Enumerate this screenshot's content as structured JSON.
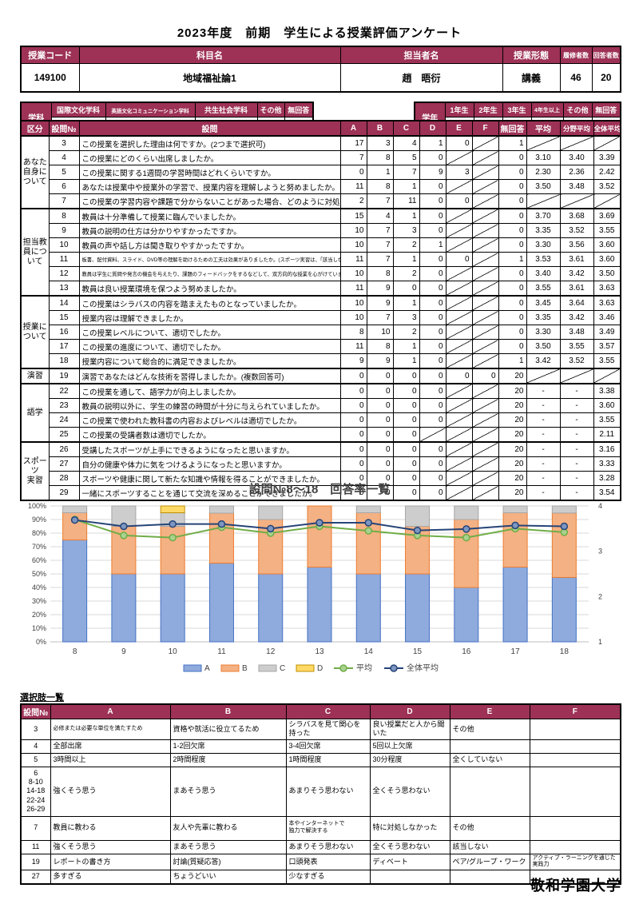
{
  "page_title": "2023年度　前期　学生による授業評価アンケート",
  "course_info": {
    "headers": [
      "授業コード",
      "科目名",
      "担当者名",
      "授業形態",
      "履修者数",
      "回答者数"
    ],
    "values": [
      "149100",
      "地域福祉論1",
      "趙　晤衍",
      "講義",
      "46",
      "20"
    ]
  },
  "department": {
    "label": "学科",
    "headers": [
      "国際文化学科",
      "英語文化コミュニケーション学科",
      "共生社会学科",
      "その他",
      "無回答"
    ],
    "values": [
      "2",
      "0",
      "18",
      "0",
      "0"
    ]
  },
  "grade": {
    "label": "学年",
    "headers": [
      "1年生",
      "2年生",
      "3年生",
      "4年生以上",
      "その他",
      "無回答"
    ],
    "values": [
      "0",
      "14",
      "5",
      "1",
      "0",
      "0"
    ]
  },
  "survey_table": {
    "headers": [
      "区分",
      "設問№",
      "設問",
      "A",
      "B",
      "C",
      "D",
      "E",
      "F",
      "無回答",
      "平均",
      "分野平均",
      "全体平均"
    ],
    "groups": [
      {
        "label": "あなた\n自身に\nついて",
        "rows": [
          {
            "no": "3",
            "q": "この授業を選択した理由は何ですか。(2つまで選択可)",
            "small": false,
            "cells": [
              "17",
              "3",
              "4",
              "1",
              "0",
              "/",
              "1",
              "/",
              "/",
              "/"
            ]
          },
          {
            "no": "4",
            "q": "この授業にどのくらい出席しましたか。",
            "small": false,
            "cells": [
              "7",
              "8",
              "5",
              "0",
              "/",
              "/",
              "0",
              "3.10",
              "3.40",
              "3.39"
            ]
          },
          {
            "no": "5",
            "q": "この授業に関する1週間の学習時間はどれくらいですか。",
            "small": false,
            "cells": [
              "0",
              "1",
              "7",
              "9",
              "3",
              "/",
              "0",
              "2.30",
              "2.36",
              "2.42"
            ]
          },
          {
            "no": "6",
            "q": "あなたは授業中や授業外の学習で、授業内容を理解しようと努めましたか。",
            "small": false,
            "cells": [
              "11",
              "8",
              "1",
              "0",
              "/",
              "/",
              "0",
              "3.50",
              "3.48",
              "3.52"
            ]
          },
          {
            "no": "7",
            "q": "この授業の学習内容や課題で分からないことがあった場合、どのように対処しましたか。",
            "small": false,
            "cells": [
              "2",
              "7",
              "11",
              "0",
              "0",
              "/",
              "0",
              "/",
              "/",
              "/"
            ]
          }
        ]
      },
      {
        "label": "担当教\n員につ\nいて",
        "rows": [
          {
            "no": "8",
            "q": "教員は十分準備して授業に臨んでいましたか。",
            "small": false,
            "cells": [
              "15",
              "4",
              "1",
              "0",
              "/",
              "/",
              "0",
              "3.70",
              "3.68",
              "3.69"
            ]
          },
          {
            "no": "9",
            "q": "教員の説明の仕方は分かりやすかったですか。",
            "small": false,
            "cells": [
              "10",
              "7",
              "3",
              "0",
              "/",
              "/",
              "0",
              "3.35",
              "3.52",
              "3.55"
            ]
          },
          {
            "no": "10",
            "q": "教員の声や話し方は聞き取りやすかったですか。",
            "small": false,
            "cells": [
              "10",
              "7",
              "2",
              "1",
              "/",
              "/",
              "0",
              "3.30",
              "3.56",
              "3.60"
            ]
          },
          {
            "no": "11",
            "q": "板書、配付資料、スライド、DVD等の理解を助けるための工夫は効果がありましたか。(スポーツ実習は、「該当しない」を選んでください)",
            "small": true,
            "cells": [
              "11",
              "7",
              "1",
              "0",
              "0",
              "/",
              "1",
              "3.53",
              "3.61",
              "3.60"
            ]
          },
          {
            "no": "12",
            "q": "教員は学生に質問や発言の機会を与えたり、課題のフィードバックをするなどして、双方向的な授業を心がけていましたか。",
            "small": true,
            "cells": [
              "10",
              "8",
              "2",
              "0",
              "/",
              "/",
              "0",
              "3.40",
              "3.42",
              "3.50"
            ]
          },
          {
            "no": "13",
            "q": "教員は良い授業環境を保つよう努めましたか。",
            "small": false,
            "cells": [
              "11",
              "9",
              "0",
              "0",
              "/",
              "/",
              "0",
              "3.55",
              "3.61",
              "3.63"
            ]
          }
        ]
      },
      {
        "label": "授業に\nついて",
        "rows": [
          {
            "no": "14",
            "q": "この授業はシラバスの内容を踏まえたものとなっていましたか。",
            "small": false,
            "cells": [
              "10",
              "9",
              "1",
              "0",
              "/",
              "/",
              "0",
              "3.45",
              "3.64",
              "3.63"
            ]
          },
          {
            "no": "15",
            "q": "授業内容は理解できましたか。",
            "small": false,
            "cells": [
              "10",
              "7",
              "3",
              "0",
              "/",
              "/",
              "0",
              "3.35",
              "3.42",
              "3.46"
            ]
          },
          {
            "no": "16",
            "q": "この授業レベルについて、適切でしたか。",
            "small": false,
            "cells": [
              "8",
              "10",
              "2",
              "0",
              "/",
              "/",
              "0",
              "3.30",
              "3.48",
              "3.49"
            ]
          },
          {
            "no": "17",
            "q": "この授業の進度について、適切でしたか。",
            "small": false,
            "cells": [
              "11",
              "8",
              "1",
              "0",
              "/",
              "/",
              "0",
              "3.50",
              "3.55",
              "3.57"
            ]
          },
          {
            "no": "18",
            "q": "授業内容について総合的に満足できましたか。",
            "small": false,
            "cells": [
              "9",
              "9",
              "1",
              "0",
              "/",
              "/",
              "1",
              "3.42",
              "3.52",
              "3.55"
            ]
          }
        ]
      },
      {
        "label": "演習",
        "rows": [
          {
            "no": "19",
            "q": "演習であなたはどんな技術を習得しましたか。(複数回答可)",
            "small": false,
            "cells": [
              "0",
              "0",
              "0",
              "0",
              "0",
              "0",
              "20",
              "/",
              "/",
              "/"
            ]
          }
        ]
      },
      {
        "label": "語学",
        "rows": [
          {
            "no": "22",
            "q": "この授業を通して、語学力が向上しましたか。",
            "small": false,
            "cells": [
              "0",
              "0",
              "0",
              "0",
              "/",
              "/",
              "20",
              "-",
              "-",
              "3.38"
            ]
          },
          {
            "no": "23",
            "q": "教員の説明以外に、学生の練習の時間が十分に与えられていましたか。",
            "small": false,
            "cells": [
              "0",
              "0",
              "0",
              "0",
              "/",
              "/",
              "20",
              "-",
              "-",
              "3.60"
            ]
          },
          {
            "no": "24",
            "q": "この授業で使われた教科書の内容およびレベルは適切でしたか。",
            "small": false,
            "cells": [
              "0",
              "0",
              "0",
              "0",
              "/",
              "/",
              "20",
              "-",
              "-",
              "3.55"
            ]
          },
          {
            "no": "25",
            "q": "この授業の受講者数は適切でしたか。",
            "small": false,
            "cells": [
              "0",
              "0",
              "0",
              "/",
              "/",
              "/",
              "20",
              "-",
              "-",
              "2.11"
            ]
          }
        ]
      },
      {
        "label": "スポーツ\n実習",
        "rows": [
          {
            "no": "26",
            "q": "受講したスポーツが上手にできるようになったと思いますか。",
            "small": false,
            "cells": [
              "0",
              "0",
              "0",
              "0",
              "/",
              "/",
              "20",
              "-",
              "-",
              "3.16"
            ]
          },
          {
            "no": "27",
            "q": "自分の健康や体力に気をつけるようになったと思いますか。",
            "small": false,
            "cells": [
              "0",
              "0",
              "0",
              "0",
              "/",
              "/",
              "20",
              "-",
              "-",
              "3.33"
            ]
          },
          {
            "no": "28",
            "q": "スポーツや健康に関して新たな知識や情報を得ることができましたか。",
            "small": false,
            "cells": [
              "0",
              "0",
              "0",
              "0",
              "/",
              "/",
              "20",
              "-",
              "-",
              "3.28"
            ]
          },
          {
            "no": "29",
            "q": "一緒にスポーツすることを通じて交流を深めることができましたか。",
            "small": false,
            "cells": [
              "0",
              "0",
              "0",
              "0",
              "/",
              "/",
              "20",
              "-",
              "-",
              "3.54"
            ]
          }
        ]
      }
    ]
  },
  "chart_data": {
    "type": "bar",
    "subtype": "stacked-percent-with-lines",
    "title": "設問№8〜18　回答率一覧",
    "categories": [
      "8",
      "9",
      "10",
      "11",
      "12",
      "13",
      "14",
      "15",
      "16",
      "17",
      "18"
    ],
    "series": [
      {
        "name": "A",
        "type": "bar",
        "color": "#8FAADC",
        "border": "#4472C4",
        "values": [
          75,
          50,
          50,
          57.9,
          50,
          55,
          50,
          50,
          40,
          55,
          47.4
        ]
      },
      {
        "name": "B",
        "type": "bar",
        "color": "#F4B183",
        "border": "#ED7D31",
        "values": [
          20,
          35,
          35,
          36.8,
          40,
          45,
          45,
          35,
          50,
          40,
          47.4
        ]
      },
      {
        "name": "C",
        "type": "bar",
        "color": "#CDCDCD",
        "border": "#A6A6A6",
        "values": [
          5,
          15,
          10,
          5.3,
          10,
          0,
          5,
          15,
          10,
          5,
          5.2
        ]
      },
      {
        "name": "D",
        "type": "bar",
        "color": "#FFD966",
        "border": "#BF9000",
        "values": [
          0,
          0,
          5,
          0,
          0,
          0,
          0,
          0,
          0,
          0,
          0
        ]
      },
      {
        "name": "平均",
        "type": "line",
        "color": "#70AD47",
        "marker_fill": "#A9D18E",
        "values": [
          3.7,
          3.35,
          3.3,
          3.53,
          3.4,
          3.55,
          3.45,
          3.35,
          3.3,
          3.5,
          3.42
        ]
      },
      {
        "name": "全体平均",
        "type": "line",
        "color": "#264478",
        "marker_fill": "#7D96C0",
        "values": [
          3.69,
          3.55,
          3.6,
          3.6,
          3.5,
          3.63,
          3.63,
          3.46,
          3.49,
          3.57,
          3.55
        ]
      }
    ],
    "left_axis": {
      "min": 0,
      "max": 100,
      "ticks": [
        "0%",
        "10%",
        "20%",
        "30%",
        "40%",
        "50%",
        "60%",
        "70%",
        "80%",
        "90%",
        "100%"
      ]
    },
    "right_axis": {
      "min": 1,
      "max": 4,
      "ticks": [
        "1",
        "2",
        "3",
        "4"
      ]
    },
    "grid": true,
    "legend_position": "bottom"
  },
  "options_table": {
    "title": "選択肢一覧",
    "headers": [
      "設問№",
      "A",
      "B",
      "C",
      "D",
      "E",
      "F"
    ],
    "rows": [
      {
        "no": "3",
        "tall": false,
        "opts": [
          "必修または必要な単位を満たすため",
          "資格や就活に役立てるため",
          "シラバスを見て関心を持った",
          "良い授業だと人から聞いた",
          "その他",
          ""
        ]
      },
      {
        "no": "4",
        "tall": false,
        "opts": [
          "全部出席",
          "1-2回欠席",
          "3-4回欠席",
          "5回以上欠席",
          "",
          ""
        ]
      },
      {
        "no": "5",
        "tall": false,
        "opts": [
          "3時間以上",
          "2時間程度",
          "1時間程度",
          "30分程度",
          "全くしていない",
          ""
        ]
      },
      {
        "no": "6\n8-10\n14-18\n22-24\n26-29",
        "tall": true,
        "opts": [
          "強くそう思う",
          "まあそう思う",
          "あまりそう思わない",
          "全くそう思わない",
          "",
          ""
        ]
      },
      {
        "no": "7",
        "tall": false,
        "opts": [
          "教員に教わる",
          "友人や先輩に教わる",
          "本やインターネットで\n独力で解決する",
          "特に対処しなかった",
          "その他",
          ""
        ]
      },
      {
        "no": "11",
        "tall": false,
        "opts": [
          "強くそう思う",
          "まあそう思う",
          "あまりそう思わない",
          "全くそう思わない",
          "該当しない",
          ""
        ]
      },
      {
        "no": "19",
        "tall": false,
        "opts": [
          "レポートの書き方",
          "討論(質疑応答)",
          "口頭発表",
          "ディベート",
          "ペア/グループ・ワーク",
          "アクティブ・ラーニングを通じた実践力"
        ]
      },
      {
        "no": "27",
        "tall": false,
        "opts": [
          "多すぎる",
          "ちょうどいい",
          "少なすぎる",
          "",
          "",
          ""
        ]
      }
    ]
  },
  "footer": {
    "brand": "敬和学園大学"
  },
  "colors": {
    "header_bg": "#9D3156",
    "grid_line": "#D9D9D9",
    "axis_line": "#BFBFBF"
  }
}
